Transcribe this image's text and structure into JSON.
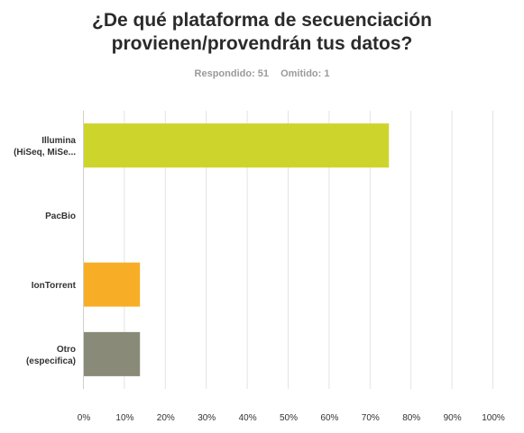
{
  "title_lines": [
    "¿De qué plataforma de secuenciación",
    "provienen/provendrán tus datos?"
  ],
  "stats": {
    "answered": "Respondido: 51",
    "skipped": "Omitido: 1"
  },
  "chart_data": {
    "type": "bar",
    "orientation": "horizontal",
    "categories": [
      [
        "Illumina",
        "(HiSeq, MiSe..."
      ],
      [
        "PacBio"
      ],
      [
        "IonTorrent"
      ],
      [
        "Otro",
        "(especifica)"
      ]
    ],
    "values": [
      74.5,
      0,
      13.7,
      13.7
    ],
    "colors": [
      "#cdd52c",
      "#cdd52c",
      "#f7ae26",
      "#8a8a78"
    ],
    "xlim": [
      0,
      100
    ],
    "xticks": [
      "0%",
      "10%",
      "20%",
      "30%",
      "40%",
      "50%",
      "60%",
      "70%",
      "80%",
      "90%",
      "100%"
    ],
    "grid": true
  }
}
